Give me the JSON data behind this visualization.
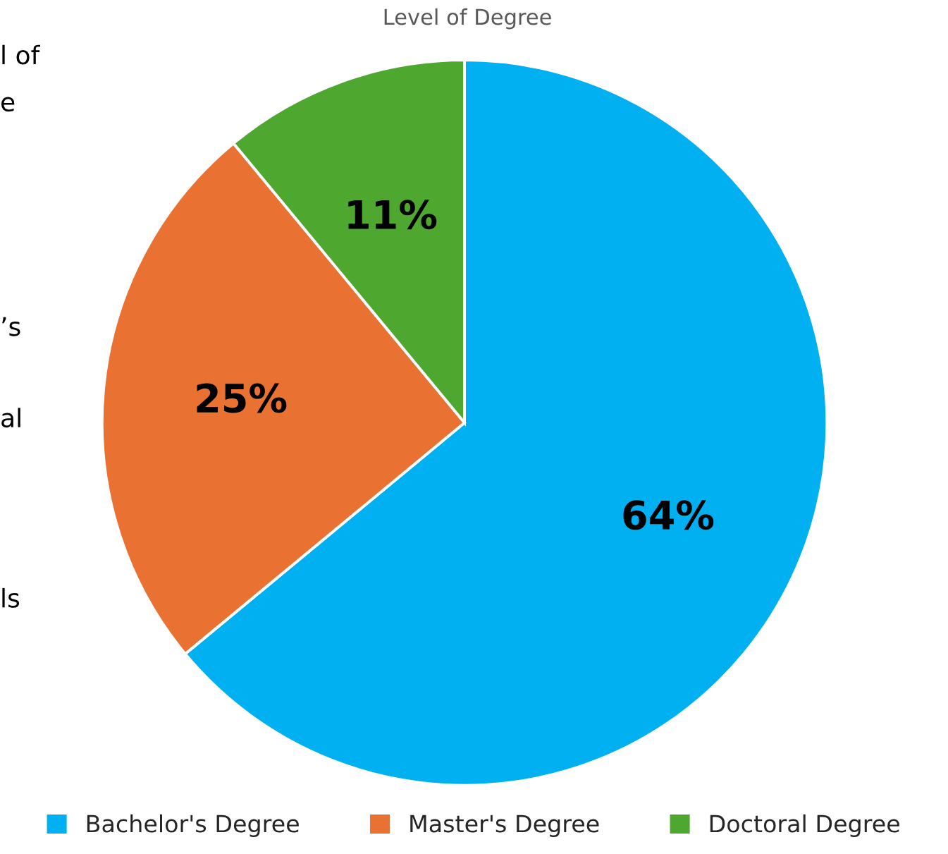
{
  "chart_data": {
    "type": "pie",
    "title": "Level of Degree",
    "categories": [
      "Bachelor's Degree",
      "Master's Degree",
      "Doctoral Degree"
    ],
    "values": [
      64,
      25,
      11
    ],
    "colors": [
      "#00b0f0",
      "#e97132",
      "#4ea72e"
    ],
    "value_labels": [
      "64%",
      "25%",
      "11%"
    ],
    "legend": "bottom",
    "annotations": [
      "l of",
      "e",
      "’s",
      "al",
      "ls"
    ]
  }
}
